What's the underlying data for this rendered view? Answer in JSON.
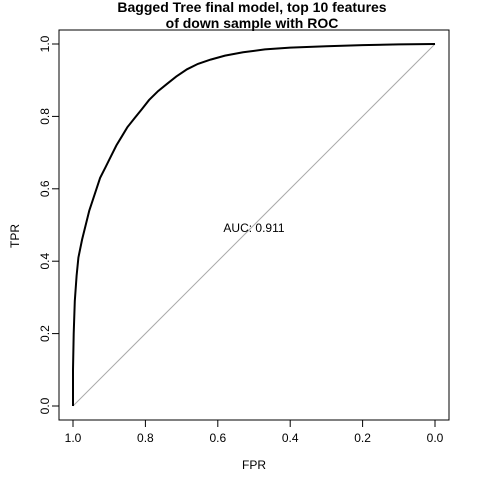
{
  "chart_data": {
    "type": "line",
    "title_lines": [
      "Bagged Tree final model, top 10 features",
      "of down sample with ROC"
    ],
    "xlabel": "FPR",
    "ylabel": "TPR",
    "xlim": [
      1.0,
      0.0
    ],
    "ylim": [
      0.0,
      1.0
    ],
    "x_reversed": true,
    "grid": false,
    "x_ticks": [
      1.0,
      0.8,
      0.6,
      0.4,
      0.2,
      0.0
    ],
    "x_tick_labels": [
      "1.0",
      "0.8",
      "0.6",
      "0.4",
      "0.2",
      "0.0"
    ],
    "y_ticks": [
      0.0,
      0.2,
      0.4,
      0.6,
      0.8,
      1.0
    ],
    "y_tick_labels": [
      "0.0",
      "0.2",
      "0.4",
      "0.6",
      "0.8",
      "1.0"
    ],
    "annotation": {
      "text": "AUC: 0.911",
      "x": 0.5,
      "y": 0.48
    },
    "reference_line": {
      "from": [
        1.0,
        0.0
      ],
      "to": [
        0.0,
        1.0
      ],
      "color": "#aaaaaa"
    },
    "series": [
      {
        "color": "#000000",
        "points": [
          [
            1.0,
            0.0
          ],
          [
            1.0,
            0.1
          ],
          [
            0.998,
            0.2
          ],
          [
            0.995,
            0.29
          ],
          [
            0.99,
            0.36
          ],
          [
            0.985,
            0.41
          ],
          [
            0.975,
            0.46
          ],
          [
            0.965,
            0.5
          ],
          [
            0.955,
            0.54
          ],
          [
            0.945,
            0.57
          ],
          [
            0.935,
            0.6
          ],
          [
            0.925,
            0.63
          ],
          [
            0.91,
            0.66
          ],
          [
            0.895,
            0.69
          ],
          [
            0.88,
            0.72
          ],
          [
            0.865,
            0.745
          ],
          [
            0.85,
            0.77
          ],
          [
            0.83,
            0.795
          ],
          [
            0.81,
            0.82
          ],
          [
            0.79,
            0.845
          ],
          [
            0.765,
            0.87
          ],
          [
            0.74,
            0.89
          ],
          [
            0.715,
            0.91
          ],
          [
            0.685,
            0.93
          ],
          [
            0.655,
            0.945
          ],
          [
            0.62,
            0.957
          ],
          [
            0.58,
            0.968
          ],
          [
            0.53,
            0.977
          ],
          [
            0.47,
            0.985
          ],
          [
            0.4,
            0.99
          ],
          [
            0.3,
            0.994
          ],
          [
            0.2,
            0.997
          ],
          [
            0.1,
            0.999
          ],
          [
            0.0,
            1.0
          ]
        ]
      }
    ]
  }
}
